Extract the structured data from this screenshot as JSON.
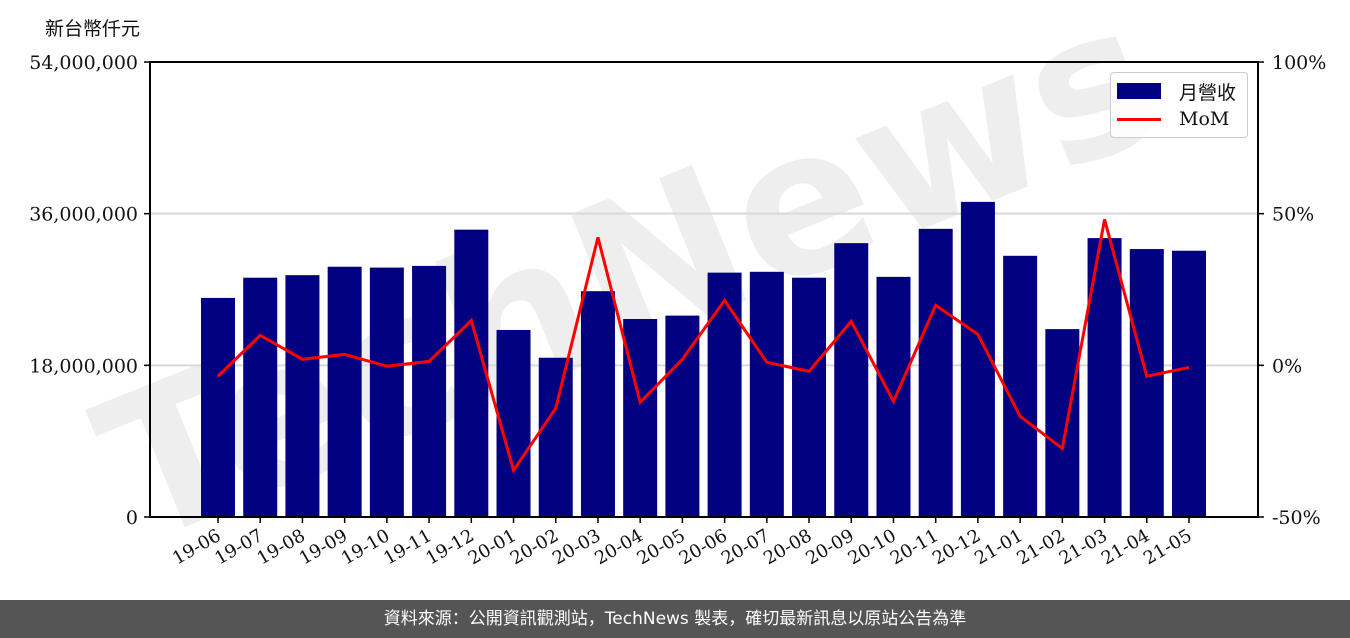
{
  "unit_label": "新台幣仟元",
  "footer": {
    "text": "資料來源：公開資訊觀測站，TechNews 製表，確切最新訊息以原站公告為準"
  },
  "legend": {
    "items": [
      {
        "label": "月營收",
        "type": "bar"
      },
      {
        "label": "MoM",
        "type": "line"
      }
    ]
  },
  "colors": {
    "bar": "#000080",
    "line": "#ff0000",
    "grid": "#d9d9d9",
    "footer_bg": "#555555",
    "watermark": "#f2c9cc"
  },
  "watermark": {
    "text": "TechNews"
  },
  "chart_data": {
    "type": "bar",
    "title": "",
    "xlabel": "",
    "ylabel": "新台幣仟元",
    "y2label": "",
    "categories": [
      "19-06",
      "19-07",
      "19-08",
      "19-09",
      "19-10",
      "19-11",
      "19-12",
      "20-01",
      "20-02",
      "20-03",
      "20-04",
      "20-05",
      "20-06",
      "20-07",
      "20-08",
      "20-09",
      "20-10",
      "20-11",
      "20-12",
      "21-01",
      "21-02",
      "21-03",
      "21-04",
      "21-05"
    ],
    "series": [
      {
        "name": "月營收",
        "type": "bar",
        "axis": "left",
        "values": [
          26000000,
          28400000,
          28700000,
          29700000,
          29600000,
          29800000,
          34100000,
          22200000,
          18900000,
          26800000,
          23500000,
          23900000,
          29000000,
          29100000,
          28400000,
          32500000,
          28500000,
          34200000,
          37400000,
          31000000,
          22300000,
          33100000,
          31800000,
          31600000
        ]
      },
      {
        "name": "MoM",
        "type": "line",
        "axis": "right",
        "unit": "%",
        "values": [
          -3.6,
          9.9,
          2.0,
          3.6,
          -0.3,
          1.3,
          14.8,
          -34.6,
          -14.2,
          42.2,
          -12.2,
          2.0,
          21.4,
          1.0,
          -2.0,
          14.5,
          -11.9,
          19.8,
          10.2,
          -16.8,
          -27.4,
          48.1,
          -3.6,
          -0.7
        ]
      }
    ],
    "ylim": [
      0,
      54000000
    ],
    "y2lim": [
      -50,
      100
    ],
    "yticks": [
      0,
      18000000,
      36000000,
      54000000
    ],
    "ytick_labels": [
      "0",
      "18,000,000",
      "36,000,000",
      "54,000,000"
    ],
    "y2ticks": [
      -50,
      0,
      50,
      100
    ],
    "y2tick_labels": [
      "-50%",
      "0%",
      "50%",
      "100%"
    ],
    "grid": true,
    "legend_position": "upper right"
  }
}
